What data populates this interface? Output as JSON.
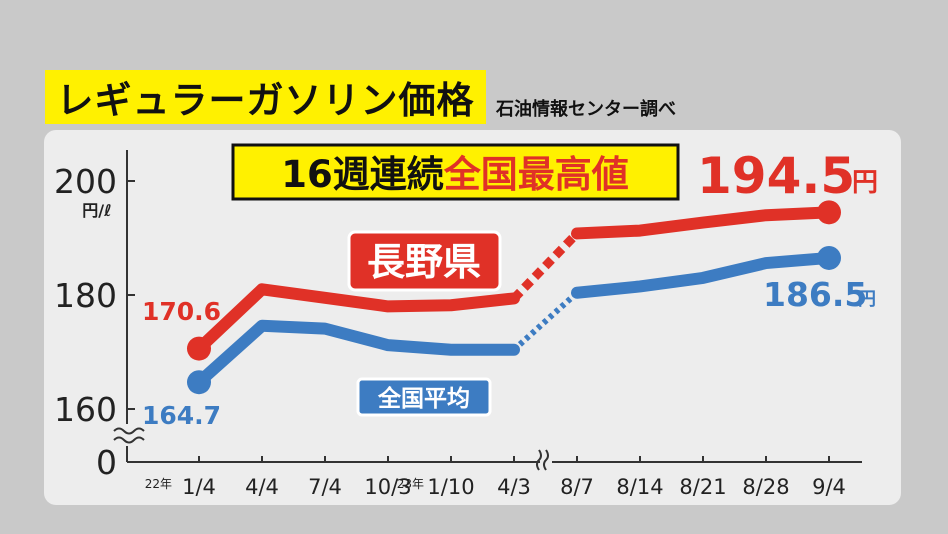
{
  "title": "レギュラーガソリン価格",
  "source": "石油情報センター調べ",
  "headline": {
    "part1": "16週連続",
    "part2": "全国最高値"
  },
  "colors": {
    "nagano": "#e03127",
    "national": "#3d7cc2",
    "title_bg": "#fff100",
    "headline_red": "#e03127"
  },
  "chart_data": {
    "type": "line",
    "y_unit": "円/ℓ",
    "y_ticks": [
      "200",
      "180",
      "160",
      "0"
    ],
    "y_tick_values": [
      200,
      180,
      160,
      0
    ],
    "ylim": [
      160,
      200
    ],
    "y_axis_break": true,
    "x_axis_break_after": "4/3",
    "year_labels": [
      {
        "label": "22年",
        "before": "1/4"
      },
      {
        "label": "23年",
        "before": "1/10"
      }
    ],
    "categories": [
      "1/4",
      "4/4",
      "7/4",
      "10/3",
      "1/10",
      "4/3",
      "8/7",
      "8/14",
      "8/21",
      "8/28",
      "9/4"
    ],
    "series": [
      {
        "name": "長野県",
        "key": "nagano",
        "path": [
          {
            "x": "1/4",
            "y": 170.6
          },
          {
            "x": "4/4",
            "y": 181.0
          },
          {
            "x": "7/4",
            "y": 179.5
          },
          {
            "x": "10/3",
            "y": 178.0
          },
          {
            "x": "1/10",
            "y": 178.2
          },
          {
            "x": "4/3",
            "y": 179.4
          },
          {
            "x": "8/7",
            "y": 190.8
          },
          {
            "x": "8/14",
            "y": 191.3
          },
          {
            "x": "8/21",
            "y": 192.7
          },
          {
            "x": "8/28",
            "y": 194.0
          },
          {
            "x": "9/4",
            "y": 194.5
          }
        ],
        "dashed_from": "4/3",
        "dashed_to": "8/7",
        "start_label": "170.6",
        "end_label": "194.5",
        "end_unit": "円"
      },
      {
        "name": "全国平均",
        "key": "national",
        "path": [
          {
            "x": "1/4",
            "y": 164.7
          },
          {
            "x": "4/4",
            "y": 174.6
          },
          {
            "x": "7/4",
            "y": 174.1
          },
          {
            "x": "10/3",
            "y": 171.2
          },
          {
            "x": "1/10",
            "y": 170.4
          },
          {
            "x": "4/3",
            "y": 170.4
          },
          {
            "x": "8/7",
            "y": 180.4
          },
          {
            "x": "8/14",
            "y": 181.5
          },
          {
            "x": "8/21",
            "y": 183.0
          },
          {
            "x": "8/28",
            "y": 185.6
          },
          {
            "x": "9/4",
            "y": 186.5
          }
        ],
        "dashed_from": "4/3",
        "dashed_to": "8/7",
        "start_label": "164.7",
        "end_label": "186.5",
        "end_unit": "円"
      }
    ]
  }
}
